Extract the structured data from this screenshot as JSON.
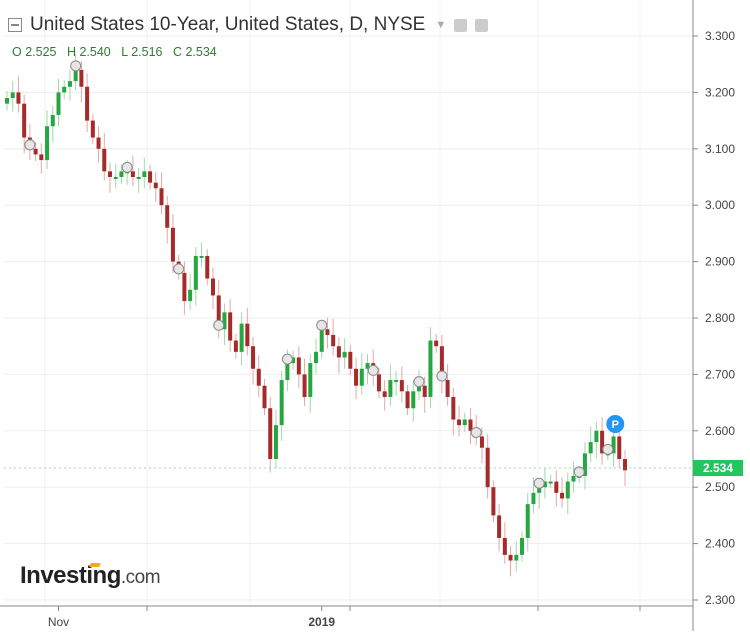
{
  "header": {
    "title": "United States 10-Year, United States, D, NYSE",
    "ohlc": {
      "o": "O 2.525",
      "h": "H 2.540",
      "l": "L 2.516",
      "c": "C 2.534"
    }
  },
  "logo": {
    "main": "Investing",
    "suffix": ".com"
  },
  "chart_data": {
    "type": "candlestick",
    "title": "United States 10-Year, United States, D, NYSE",
    "y_ticks": [
      3.3,
      3.2,
      3.1,
      3.0,
      2.9,
      2.8,
      2.7,
      2.6,
      2.5,
      2.4,
      2.3
    ],
    "y_tick_labels": [
      "3.300",
      "3.200",
      "3.100",
      "3.000",
      "2.900",
      "2.800",
      "2.700",
      "2.600",
      "2.500",
      "2.400",
      "2.300"
    ],
    "ylim": [
      2.29,
      3.34
    ],
    "x_labels": [
      {
        "label": "Nov",
        "index": 9
      },
      {
        "label": "2019",
        "index": 55
      }
    ],
    "last_price": 2.534,
    "last_price_label": "2.534",
    "last_price_color": "#22c55e",
    "up_color": "#26a641",
    "down_color": "#a52a2a",
    "marker_label": "P",
    "marker_color": "#2196f3",
    "grid": true,
    "close": [
      3.19,
      3.2,
      3.18,
      3.12,
      3.1,
      3.09,
      3.08,
      3.14,
      3.16,
      3.2,
      3.21,
      3.22,
      3.24,
      3.21,
      3.15,
      3.12,
      3.1,
      3.06,
      3.05,
      3.05,
      3.06,
      3.06,
      3.05,
      3.05,
      3.06,
      3.04,
      3.03,
      3.0,
      2.96,
      2.9,
      2.88,
      2.83,
      2.85,
      2.91,
      2.91,
      2.87,
      2.84,
      2.78,
      2.81,
      2.76,
      2.74,
      2.79,
      2.75,
      2.71,
      2.68,
      2.64,
      2.55,
      2.61,
      2.69,
      2.72,
      2.73,
      2.7,
      2.66,
      2.72,
      2.74,
      2.78,
      2.77,
      2.75,
      2.73,
      2.74,
      2.71,
      2.68,
      2.71,
      2.72,
      2.7,
      2.67,
      2.66,
      2.69,
      2.69,
      2.67,
      2.64,
      2.67,
      2.68,
      2.66,
      2.76,
      2.75,
      2.69,
      2.66,
      2.62,
      2.61,
      2.62,
      2.6,
      2.59,
      2.57,
      2.5,
      2.45,
      2.41,
      2.38,
      2.37,
      2.38,
      2.41,
      2.47,
      2.49,
      2.5,
      2.51,
      2.51,
      2.49,
      2.48,
      2.51,
      2.52,
      2.52,
      2.56,
      2.58,
      2.6,
      2.56,
      2.56,
      2.59,
      2.55,
      2.53
    ]
  }
}
